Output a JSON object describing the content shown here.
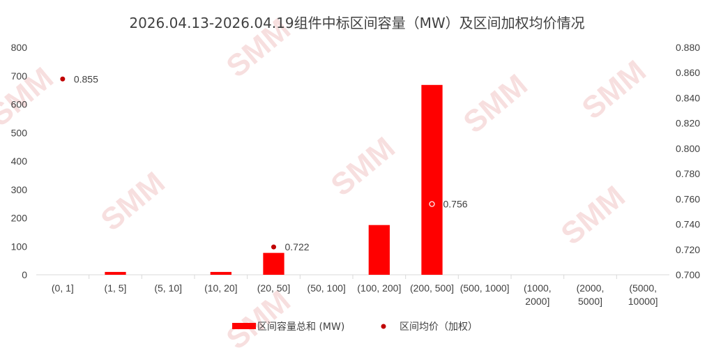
{
  "watermark": "SMM",
  "chart_data": {
    "type": "bar",
    "title": "2026.04.13-2026.04.19组件中标区间容量（MW）及区间加权均价情况",
    "categories": [
      [
        "(0, 1]"
      ],
      [
        "(1, 5]"
      ],
      [
        "(5, 10]"
      ],
      [
        "(10, 20]"
      ],
      [
        "(20, 50]"
      ],
      [
        "(50, 100]"
      ],
      [
        "(100, 200]"
      ],
      [
        "(200, 500]"
      ],
      [
        "(500, 1000]"
      ],
      [
        "(1000,",
        "2000]"
      ],
      [
        "(2000,",
        "5000]"
      ],
      [
        "(5000,",
        "10000]"
      ]
    ],
    "y_left": {
      "min": 0,
      "max": 800,
      "step": 100,
      "ticks": [
        "0",
        "100",
        "200",
        "300",
        "400",
        "500",
        "600",
        "700",
        "800"
      ]
    },
    "y_right": {
      "min": 0.7,
      "max": 0.88,
      "step": 0.02,
      "ticks": [
        "0.700",
        "0.720",
        "0.740",
        "0.760",
        "0.780",
        "0.800",
        "0.820",
        "0.840",
        "0.860",
        "0.880"
      ]
    },
    "series": [
      {
        "name": "区间容量总和 (MW)",
        "kind": "bar",
        "axis": "left",
        "color": "#ff0000",
        "values": [
          0,
          10,
          0,
          10,
          77,
          0,
          175,
          668,
          0,
          0,
          0,
          0
        ]
      },
      {
        "name": "区间均价（加权）",
        "kind": "scatter",
        "axis": "right",
        "color": "#c00000",
        "values": [
          0.855,
          null,
          null,
          null,
          0.722,
          null,
          null,
          0.756,
          null,
          null,
          null,
          null
        ],
        "labels": [
          "0.855",
          null,
          null,
          null,
          "0.722",
          null,
          null,
          "0.756",
          null,
          null,
          null,
          null
        ]
      }
    ],
    "grid": false,
    "legend_position": "bottom"
  }
}
